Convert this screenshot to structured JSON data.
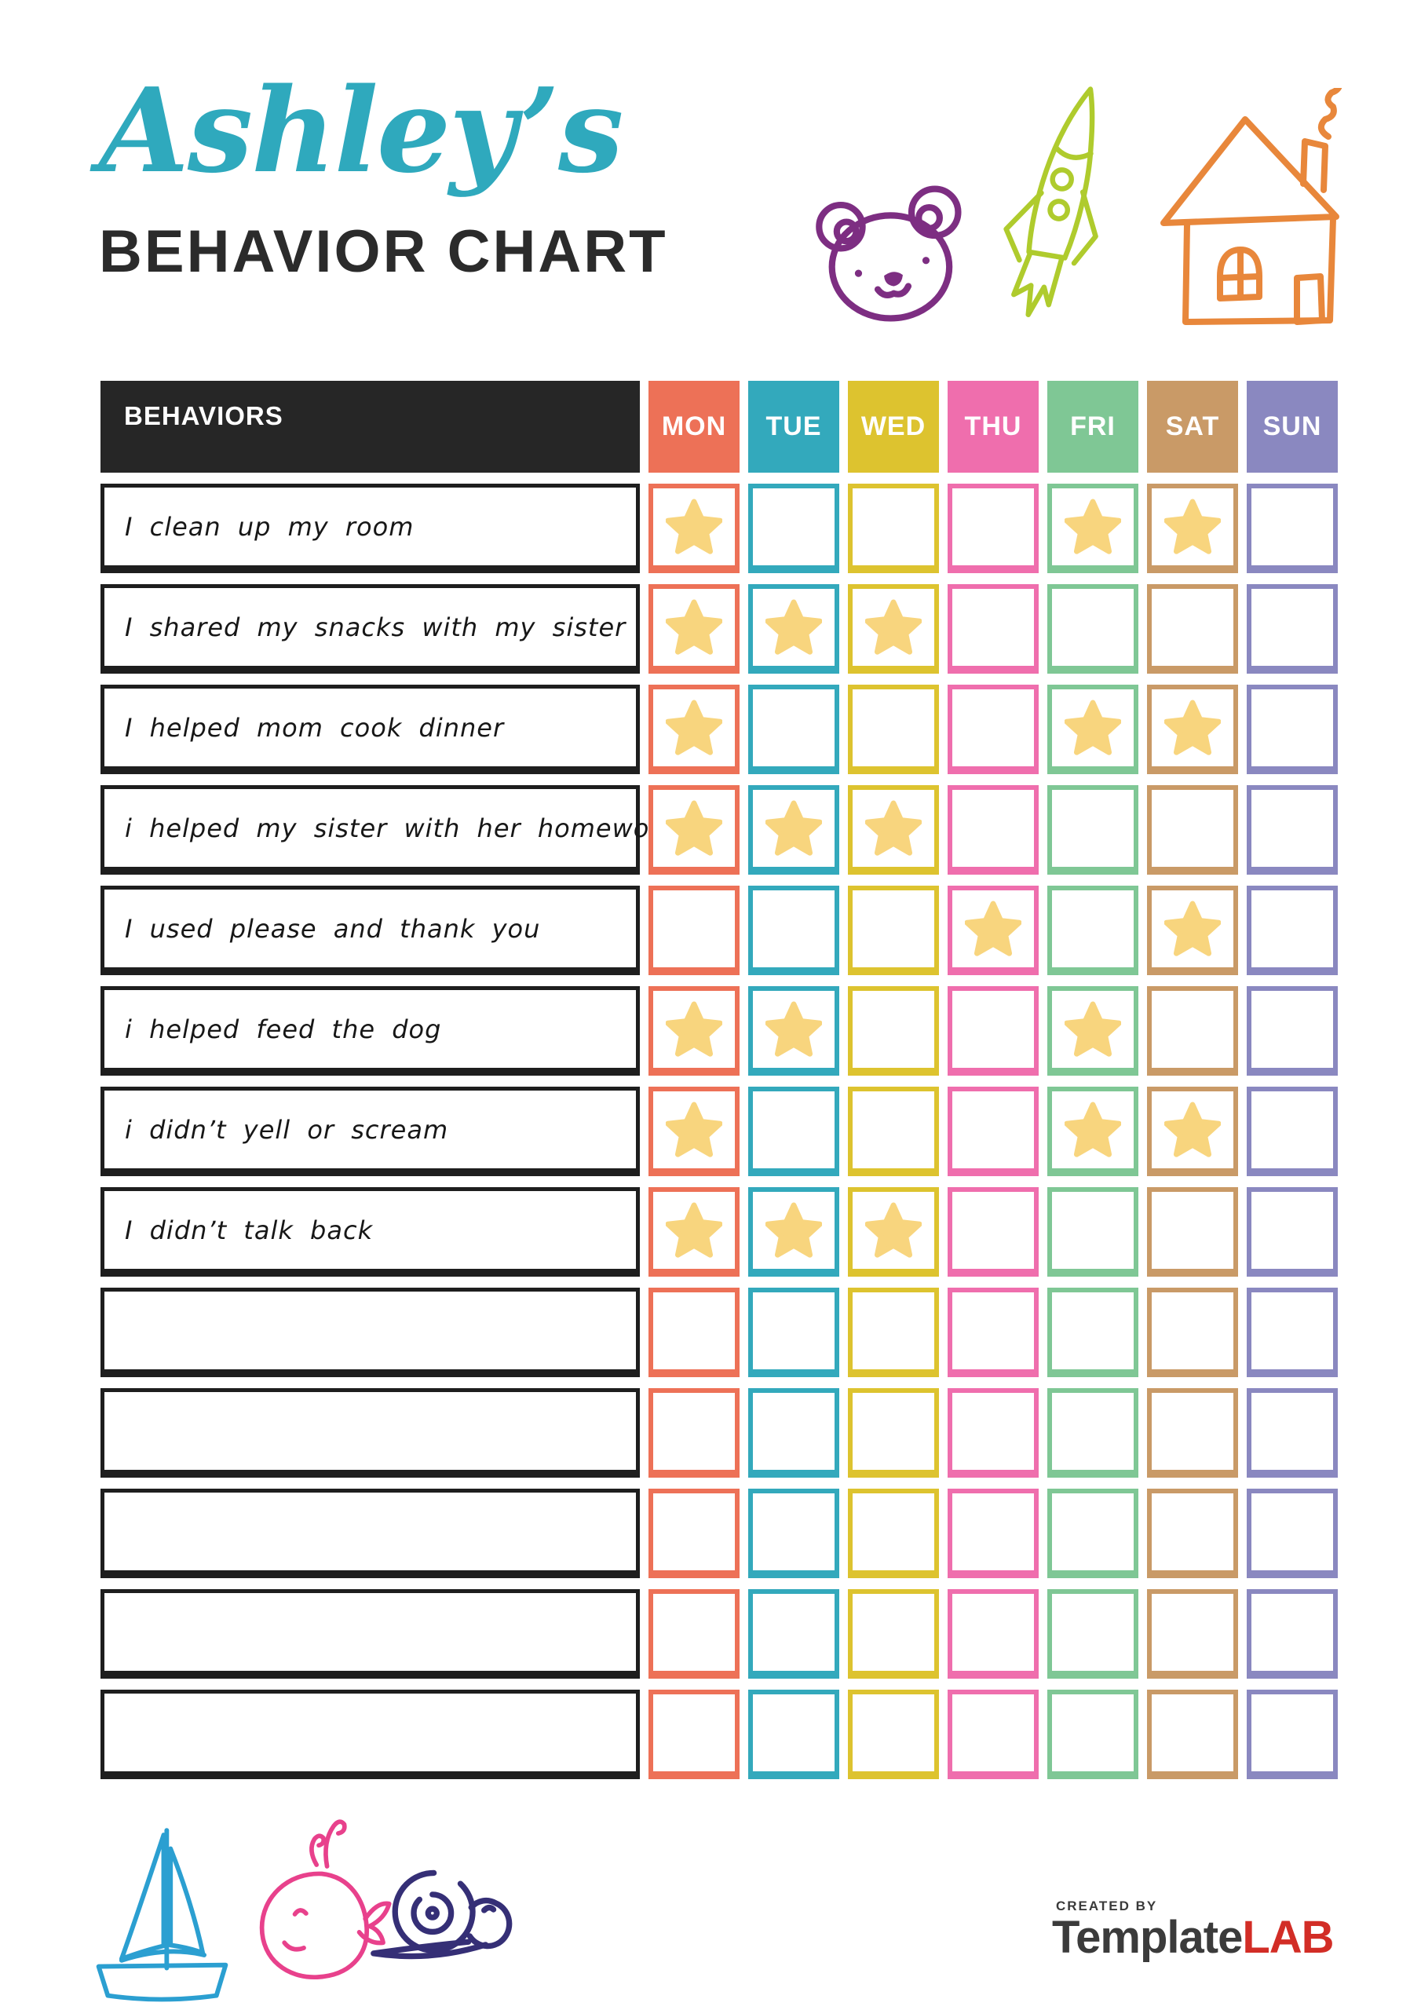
{
  "header": {
    "title": "Ashley’s",
    "title_color": "#2FA9BD",
    "subtitle": "BEHAVIOR CHART",
    "doodles": [
      "bear-icon",
      "rocket-icon",
      "house-icon"
    ]
  },
  "table": {
    "behaviors_header": "BEHAVIORS",
    "header_bg": "#262626",
    "star_color": "#F8D57E",
    "days": [
      {
        "label": "MON",
        "color": "#ED7157"
      },
      {
        "label": "TUE",
        "color": "#33A9BC"
      },
      {
        "label": "WED",
        "color": "#DDC32F"
      },
      {
        "label": "THU",
        "color": "#EF6EAD"
      },
      {
        "label": "FRI",
        "color": "#7FC795"
      },
      {
        "label": "SAT",
        "color": "#C99A67"
      },
      {
        "label": "SUN",
        "color": "#8A88C0"
      }
    ],
    "rows": [
      {
        "label": "I clean up my room",
        "stars": [
          1,
          0,
          0,
          0,
          1,
          1,
          0
        ]
      },
      {
        "label": "I shared my snacks with my sister",
        "stars": [
          1,
          1,
          1,
          0,
          0,
          0,
          0
        ]
      },
      {
        "label": "I helped mom cook dinner",
        "stars": [
          1,
          0,
          0,
          0,
          1,
          1,
          0
        ]
      },
      {
        "label": "i helped my sister with her homework",
        "stars": [
          1,
          1,
          1,
          0,
          0,
          0,
          0
        ]
      },
      {
        "label": "I used please and thank you",
        "stars": [
          0,
          0,
          0,
          1,
          0,
          1,
          0
        ]
      },
      {
        "label": "i helped feed the dog",
        "stars": [
          1,
          1,
          0,
          0,
          1,
          0,
          0
        ]
      },
      {
        "label": "i didn’t yell or scream",
        "stars": [
          1,
          0,
          0,
          0,
          1,
          1,
          0
        ]
      },
      {
        "label": "I didn’t talk back",
        "stars": [
          1,
          1,
          1,
          0,
          0,
          0,
          0
        ]
      },
      {
        "label": "",
        "stars": [
          0,
          0,
          0,
          0,
          0,
          0,
          0
        ]
      },
      {
        "label": "",
        "stars": [
          0,
          0,
          0,
          0,
          0,
          0,
          0
        ]
      },
      {
        "label": "",
        "stars": [
          0,
          0,
          0,
          0,
          0,
          0,
          0
        ]
      },
      {
        "label": "",
        "stars": [
          0,
          0,
          0,
          0,
          0,
          0,
          0
        ]
      },
      {
        "label": "",
        "stars": [
          0,
          0,
          0,
          0,
          0,
          0,
          0
        ]
      }
    ]
  },
  "footer": {
    "doodles": [
      "sailboat-icon",
      "whale-icon",
      "snail-icon"
    ],
    "logo": {
      "created_by": "CREATED BY",
      "brand": "Template",
      "brand_accent": "LAB",
      "accent_color": "#D22D26"
    }
  }
}
